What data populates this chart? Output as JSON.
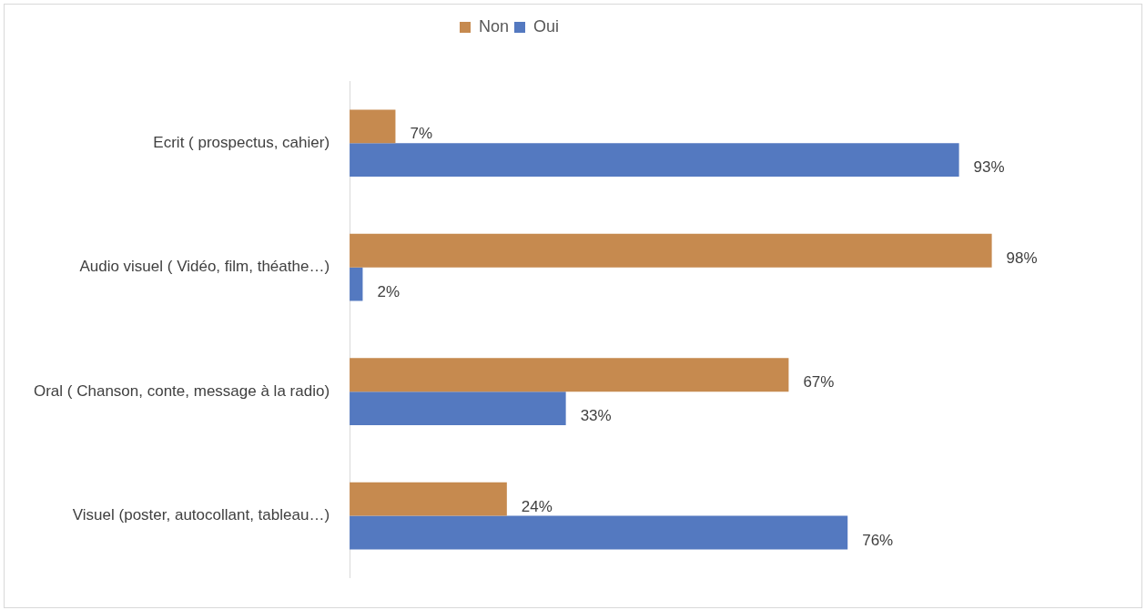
{
  "chart_data": {
    "type": "bar",
    "orientation": "horizontal",
    "categories": [
      "Ecrit ( prospectus, cahier)",
      "Audio visuel ( Vidéo, film, théathe…)",
      "Oral ( Chanson, conte, message à la radio)",
      "Visuel (poster, autocollant, tableau…)"
    ],
    "series": [
      {
        "name": "Non",
        "color": "#c68a4f",
        "values": [
          7,
          98,
          67,
          24
        ],
        "value_labels": [
          "7%",
          "98%",
          "67%",
          "24%"
        ]
      },
      {
        "name": "Oui",
        "color": "#5479c0",
        "values": [
          93,
          2,
          33,
          76
        ],
        "value_labels": [
          "93%",
          "2%",
          "33%",
          "76%"
        ]
      }
    ],
    "legend": "top",
    "grid": false,
    "tick_labels": "y"
  }
}
